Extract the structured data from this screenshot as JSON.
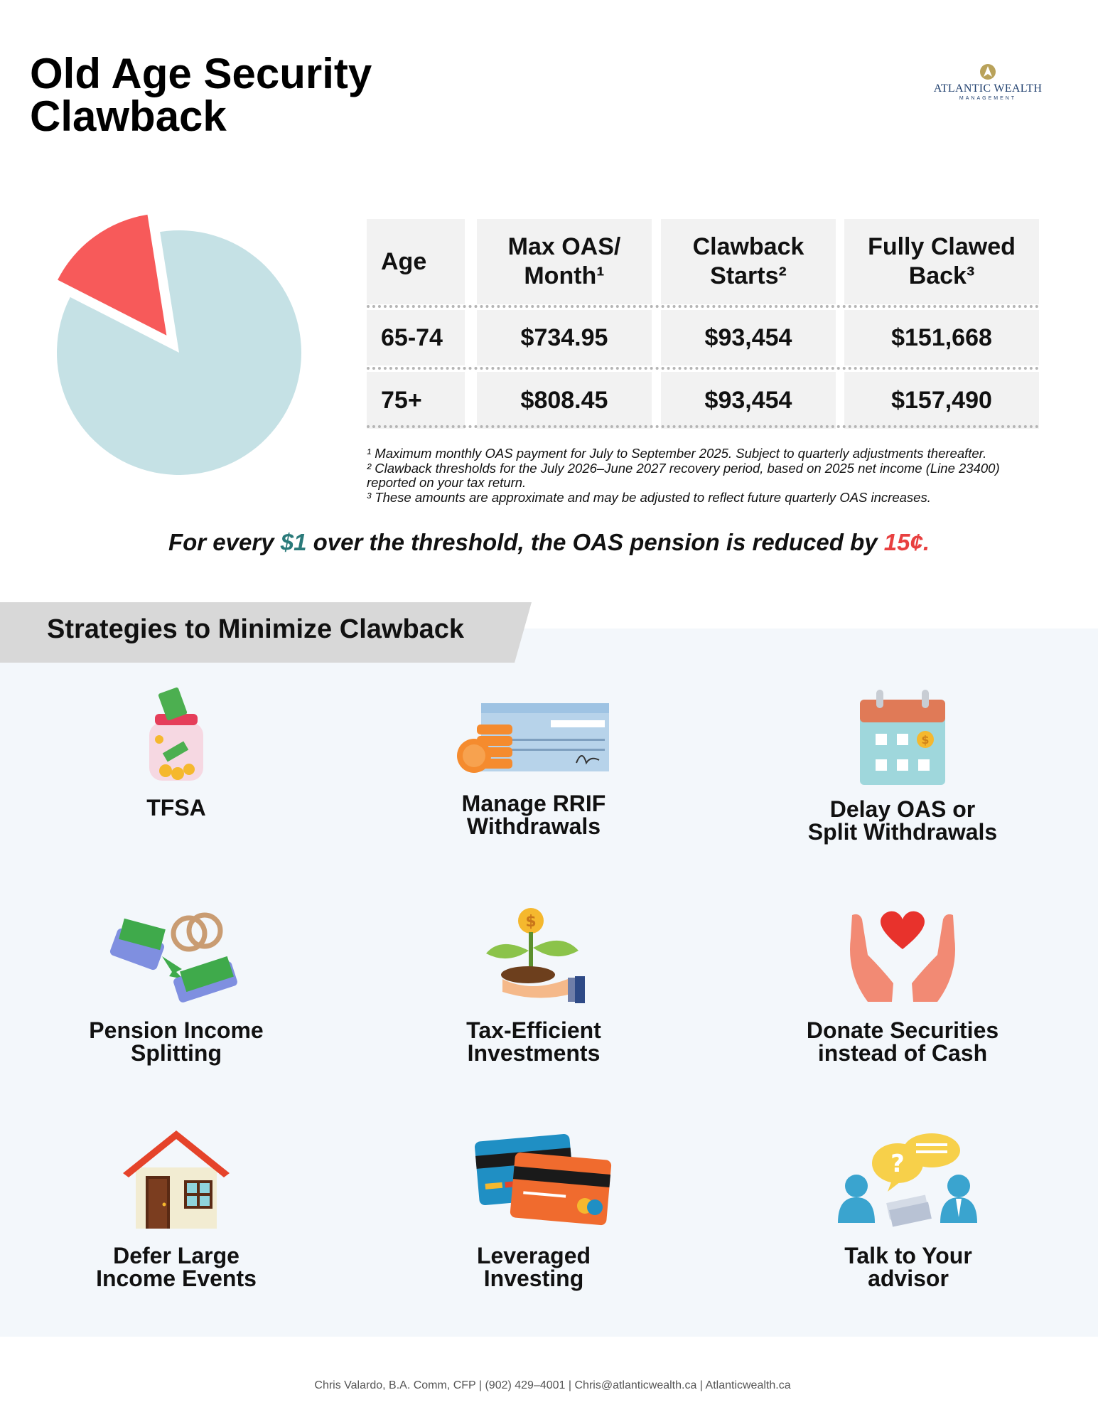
{
  "title": "Old Age Security\nClawback",
  "logo": {
    "name": "ATLANTIC WEALTH",
    "sub": "MANAGEMENT"
  },
  "chart_data": {
    "type": "pie",
    "slices": [
      {
        "label": "",
        "value": 15,
        "color": "#f75a5a",
        "exploded": true
      },
      {
        "label": "",
        "value": 85,
        "color": "#c5e1e5"
      }
    ]
  },
  "table": {
    "headers": [
      "Age",
      "Max OAS/ Month¹",
      "Clawback Starts²",
      "Fully Clawed Back³"
    ],
    "rows": [
      [
        "65-74",
        "$734.95",
        "$93,454",
        "$151,668"
      ],
      [
        "75+",
        "$808.45",
        "$93,454",
        "$157,490"
      ]
    ]
  },
  "footnotes": [
    "¹ Maximum monthly OAS payment for July to September 2025. Subject to quarterly adjustments thereafter.",
    "² Clawback thresholds for the July 2026–June 2027 recovery period, based on 2025 net income (Line 23400) reported on your tax return.",
    "³ These amounts are approximate and may be adjusted to reflect future quarterly OAS increases."
  ],
  "rule": {
    "part1": "For every ",
    "dollar": "$1",
    "part2": " over the threshold, the OAS pension is reduced by ",
    "cents": "15¢."
  },
  "strategies_title": "Strategies to Minimize Clawback",
  "strategies": [
    {
      "label": "TFSA",
      "icon": "money-jar-icon"
    },
    {
      "label": "Manage RRIF\nWithdrawals",
      "icon": "cheque-coins-icon"
    },
    {
      "label": "Delay OAS or\nSplit Withdrawals",
      "icon": "calendar-icon"
    },
    {
      "label": "Pension Income\nSplitting",
      "icon": "rings-money-icon"
    },
    {
      "label": "Tax-Efficient\nInvestments",
      "icon": "plant-coin-icon"
    },
    {
      "label": "Donate Securities\ninstead of Cash",
      "icon": "heart-hands-icon"
    },
    {
      "label": "Defer Large\nIncome Events",
      "icon": "house-icon"
    },
    {
      "label": "Leveraged\nInvesting",
      "icon": "credit-cards-icon"
    },
    {
      "label": "Talk to Your\nadvisor",
      "icon": "advisor-chat-icon"
    }
  ],
  "footer": "Chris Valardo, B.A. Comm, CFP | (902) 429–4001 | Chris@atlanticwealth.ca | Atlanticwealth.ca"
}
